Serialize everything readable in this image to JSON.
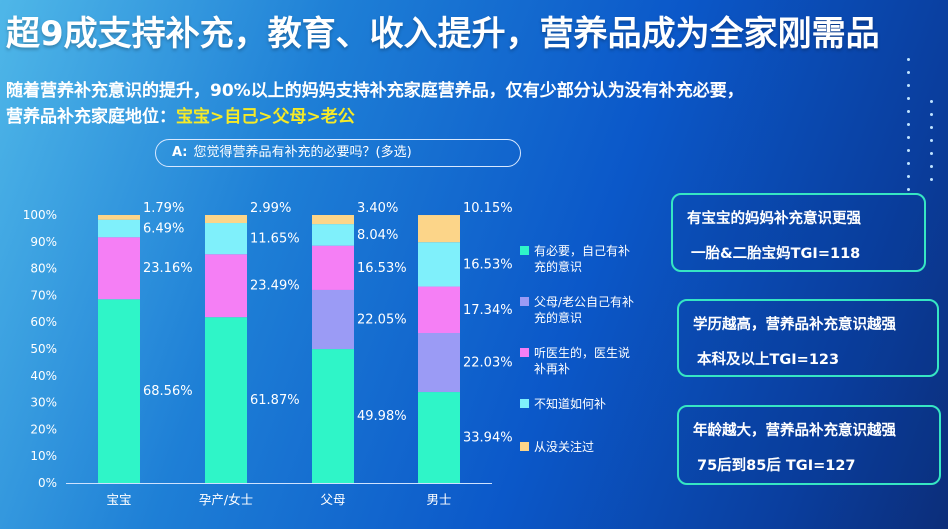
{
  "title": "超9成支持补充，教育、收入提升，营养品成为全家刚需品",
  "subtitle": {
    "line1": "随着营养补充意识的提升，90%以上的妈妈支持补充家庭营养品，仅有少部分认为没有补充必要，",
    "line2_prefix": "营养品补充家庭地位：",
    "line2_highlight": "宝宝>自己>父母>老公"
  },
  "question": {
    "tag": "A:",
    "text": "您觉得营养品有补充的必要吗？(多选)"
  },
  "chart_data": {
    "type": "bar",
    "stacked": true,
    "categories": [
      "宝宝",
      "孕产/女士",
      "父母",
      "男士"
    ],
    "series": [
      {
        "name": "有必要，自己有补充的意识",
        "color": "#2ff5c8",
        "values": [
          68.56,
          61.87,
          49.98,
          33.94
        ]
      },
      {
        "name": "父母/老公自己有补充的意识",
        "color": "#9b9bf5",
        "values": [
          0,
          0,
          22.05,
          22.03
        ]
      },
      {
        "name": "听医生的，医生说补再补",
        "color": "#f57ff5",
        "values": [
          23.16,
          23.49,
          16.53,
          17.34
        ]
      },
      {
        "name": "不知道如何补",
        "color": "#7ff0fb",
        "values": [
          6.49,
          11.65,
          8.04,
          16.53
        ]
      },
      {
        "name": "从没关注过",
        "color": "#fcd589",
        "values": [
          1.79,
          2.99,
          3.4,
          10.15
        ]
      }
    ],
    "labels": [
      [
        "68.56%",
        "",
        "23.16%",
        "6.49%",
        "1.79%"
      ],
      [
        "61.87%",
        "",
        "23.49%",
        "11.65%",
        "2.99%"
      ],
      [
        "49.98%",
        "22.05%",
        "16.53%",
        "8.04%",
        "3.40%"
      ],
      [
        "33.94%",
        "22.03%",
        "17.34%",
        "16.53%",
        "10.15%"
      ]
    ],
    "yticks": [
      "0%",
      "10%",
      "20%",
      "30%",
      "40%",
      "50%",
      "60%",
      "70%",
      "80%",
      "90%",
      "100%"
    ],
    "ylim": [
      0,
      100
    ],
    "legend_position": "right"
  },
  "legend": [
    {
      "line1": "有必要，自己有补",
      "line2": "充的意识",
      "color": "#2ff5c8"
    },
    {
      "line1": "父母/老公自己有补",
      "line2": "充的意识",
      "color": "#9b9bf5"
    },
    {
      "line1": "听医生的，医生说",
      "line2": "补再补",
      "color": "#f57ff5"
    },
    {
      "line1": "不知道如何补",
      "line2": "",
      "color": "#7ff0fb"
    },
    {
      "line1": "从没关注过",
      "line2": "",
      "color": "#fcd589"
    }
  ],
  "cards": [
    {
      "title": "有宝宝的妈妈补充意识更强",
      "detail": "一胎&二胎宝妈TGI=118"
    },
    {
      "title": "学历越高，营养品补充意识越强",
      "detail": "本科及以上TGI=123"
    },
    {
      "title": "年龄越大，营养品补充意识越强",
      "detail": "75后到85后  TGI=127"
    }
  ]
}
